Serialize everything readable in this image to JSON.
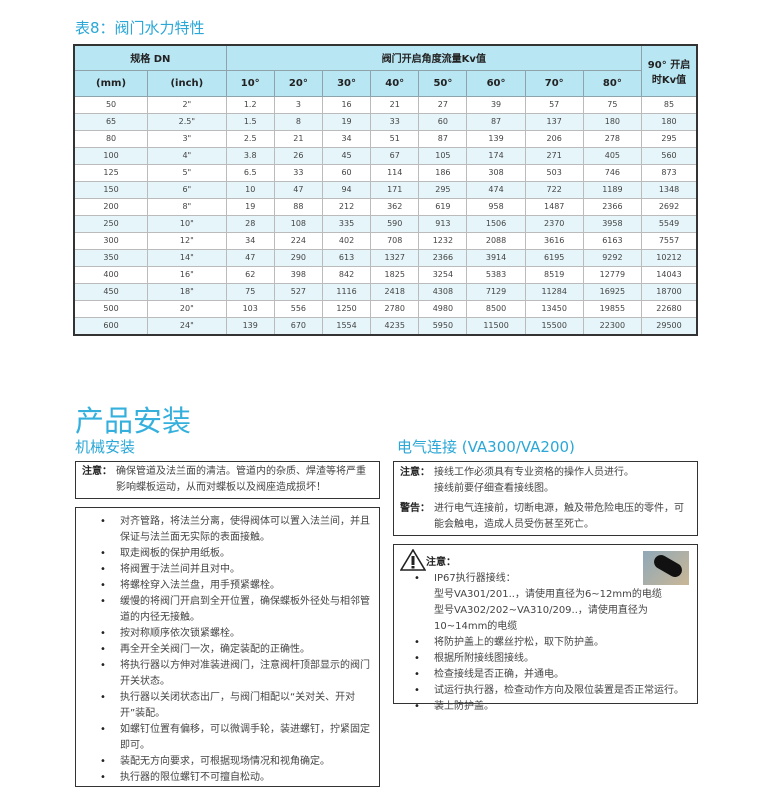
{
  "table_title": "表8：阀门水力特性",
  "table": {
    "header_size": "规格 DN",
    "header_kv": "阀门开启角度流量Kv值",
    "header_90": "90° 开启时Kv值",
    "col_mm": "(mm)",
    "col_inch": "(inch)",
    "angles": [
      "10°",
      "20°",
      "30°",
      "40°",
      "50°",
      "60°",
      "70°",
      "80°"
    ],
    "rows": [
      [
        "50",
        "2\"",
        "1.2",
        "3",
        "16",
        "21",
        "27",
        "39",
        "57",
        "75",
        "85"
      ],
      [
        "65",
        "2.5\"",
        "1.5",
        "8",
        "19",
        "33",
        "60",
        "87",
        "137",
        "180",
        "180"
      ],
      [
        "80",
        "3\"",
        "2.5",
        "21",
        "34",
        "51",
        "87",
        "139",
        "206",
        "278",
        "295"
      ],
      [
        "100",
        "4\"",
        "3.8",
        "26",
        "45",
        "67",
        "105",
        "174",
        "271",
        "405",
        "560"
      ],
      [
        "125",
        "5\"",
        "6.5",
        "33",
        "60",
        "114",
        "186",
        "308",
        "503",
        "746",
        "873"
      ],
      [
        "150",
        "6\"",
        "10",
        "47",
        "94",
        "171",
        "295",
        "474",
        "722",
        "1189",
        "1348"
      ],
      [
        "200",
        "8\"",
        "19",
        "88",
        "212",
        "362",
        "619",
        "958",
        "1487",
        "2366",
        "2692"
      ],
      [
        "250",
        "10\"",
        "28",
        "108",
        "335",
        "590",
        "913",
        "1506",
        "2370",
        "3958",
        "5549"
      ],
      [
        "300",
        "12\"",
        "34",
        "224",
        "402",
        "708",
        "1232",
        "2088",
        "3616",
        "6163",
        "7557"
      ],
      [
        "350",
        "14\"",
        "47",
        "290",
        "613",
        "1327",
        "2366",
        "3914",
        "6195",
        "9292",
        "10212"
      ],
      [
        "400",
        "16\"",
        "62",
        "398",
        "842",
        "1825",
        "3254",
        "5383",
        "8519",
        "12779",
        "14043"
      ],
      [
        "450",
        "18\"",
        "75",
        "527",
        "1116",
        "2418",
        "4308",
        "7129",
        "11284",
        "16925",
        "18700"
      ],
      [
        "500",
        "20\"",
        "103",
        "556",
        "1250",
        "2780",
        "4980",
        "8500",
        "13450",
        "19855",
        "22680"
      ],
      [
        "600",
        "24\"",
        "139",
        "670",
        "1554",
        "4235",
        "5950",
        "11500",
        "15500",
        "22300",
        "29500"
      ]
    ]
  },
  "section_title": "产品安装",
  "mechanical": {
    "title": "机械安装",
    "note_label": "注意：",
    "note_text": "确保管道及法兰面的清洁。管道内的杂质、焊渣等将严重影响蝶板运动，从而对蝶板以及阀座造成损坏！",
    "steps": [
      "对齐管路，将法兰分离，使得阀体可以置入法兰间，并且保证与法兰面无实际的表面接触。",
      "取走阀板的保护用纸板。",
      "将阀置于法兰间并且对中。",
      "将螺栓穿入法兰盘，用手预紧螺栓。",
      "缓慢的将阀门开启到全开位置，确保蝶板外径处与相邻管道的内径无接触。",
      "按对称顺序依次锁紧螺栓。",
      "再全开全关阀门一次，确定装配的正确性。",
      "将执行器以方伸对准装进阀门，注意阀杆顶部显示的阀门开关状态。",
      "执行器以关闭状态出厂，与阀门相配以“关对关、开对开”装配。",
      "如螺钉位置有偏移，可以微调手轮，装进螺钉，拧紧固定即可。",
      "装配无方向要求，可根据现场情况和视角确定。",
      "执行器的限位螺钉不可擅自松动。"
    ]
  },
  "electrical": {
    "title": "电气连接 (VA300/VA200)",
    "note_label": "注意：",
    "note_lines": [
      "接线工作必须具有专业资格的操作人员进行。",
      "接线前要仔细查看接线图。"
    ],
    "warn_label": "警告：",
    "warn_text": "进行电气连接前，切断电源，触及带危险电压的零件，可能会触电，造成人员受伤甚至死亡。",
    "caution_label": "注意：",
    "caution_first": "IP67执行器接线：",
    "caution_sub": [
      "型号VA301/201..，请使用直径为6~12mm的电缆",
      "型号VA302/202~VA310/209..，请使用直径为10~14mm的电缆"
    ],
    "steps": [
      "将防护盖上的螺丝拧松，取下防护盖。",
      "根据所附接线图接线。",
      "检查接线是否正确，并通电。",
      "试运行执行器，检查动作方向及限位装置是否正常运行。",
      "装上防护盖。"
    ]
  },
  "colors": {
    "accent": "#2aa7d6",
    "header_bg": "#b9e6f3",
    "alt_row": "#e6f5fa"
  }
}
